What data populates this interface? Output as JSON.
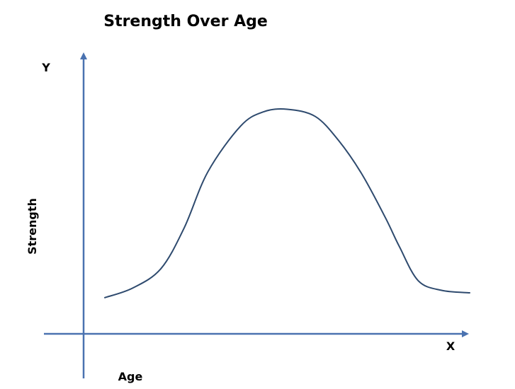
{
  "chart_data": {
    "type": "line",
    "title": "Strength Over Age",
    "xlabel": "Age",
    "ylabel": "Strength",
    "x_axis_letter": "X",
    "y_axis_letter": "Y",
    "grid": false,
    "legend": "none",
    "ticks": "none",
    "series": [
      {
        "color": "#2e4a6e",
        "points": [
          [
            0.0,
            0.15
          ],
          [
            0.06,
            0.19
          ],
          [
            0.12,
            0.27
          ],
          [
            0.17,
            0.44
          ],
          [
            0.22,
            0.67
          ],
          [
            0.29,
            0.86
          ],
          [
            0.34,
            0.92
          ],
          [
            0.39,
            0.93
          ],
          [
            0.45,
            0.9
          ],
          [
            0.5,
            0.8
          ],
          [
            0.55,
            0.66
          ],
          [
            0.6,
            0.48
          ],
          [
            0.63,
            0.36
          ],
          [
            0.67,
            0.22
          ],
          [
            0.72,
            0.18
          ],
          [
            0.78,
            0.17
          ]
        ]
      }
    ],
    "axis_color": "#4a72b0"
  }
}
